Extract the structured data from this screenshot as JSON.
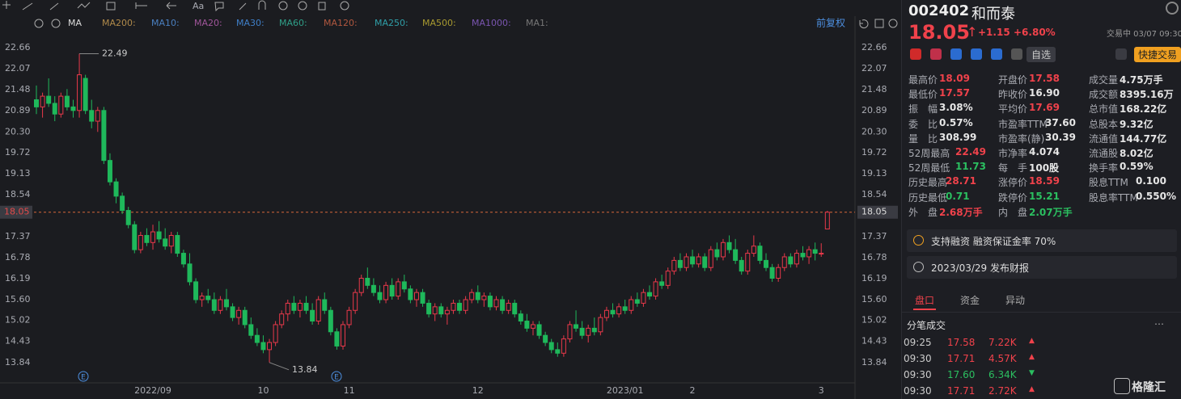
{
  "toolbar": {
    "font_icon": "Aa",
    "ma_label": "MA",
    "adjust": "前复权",
    "ma_items": [
      {
        "name": "MA200:",
        "color": "#b08a4a"
      },
      {
        "name": "MA10:",
        "color": "#4a7fc0"
      },
      {
        "name": "MA20:",
        "color": "#a0559a"
      },
      {
        "name": "MA30:",
        "color": "#3f7fc8"
      },
      {
        "name": "MA60:",
        "color": "#2f9f88"
      },
      {
        "name": "MA120:",
        "color": "#b0573f"
      },
      {
        "name": "MA250:",
        "color": "#2f9fa8"
      },
      {
        "name": "MA500:",
        "color": "#a89a30"
      },
      {
        "name": "MA1000:",
        "color": "#7a55b0"
      },
      {
        "name": "MA1:",
        "color": "#777777"
      }
    ],
    "event_marker": "E"
  },
  "chart_data": {
    "type": "candlestick",
    "up_color": "#e8394a",
    "down_color": "#1fb85b",
    "ylim": [
      13.36,
      23.09
    ],
    "yticks": [
      22.66,
      22.07,
      21.48,
      20.89,
      {
        "value": 20.3,
        "label": "20.30"
      },
      19.72,
      19.13,
      18.54,
      17.37,
      16.78,
      16.19,
      {
        "value": 15.6,
        "label": "15.60"
      },
      15.02,
      14.43,
      13.84
    ],
    "current_price": 18.05,
    "grid": false,
    "annotations": [
      {
        "label": "22.49",
        "value": 22.49
      },
      {
        "label": "13.84",
        "value": 13.84
      }
    ],
    "categories": [
      null,
      null,
      null,
      null,
      null,
      null,
      null,
      null,
      null,
      null,
      null,
      null,
      null,
      null,
      null,
      null,
      null,
      null,
      null,
      "2022/09",
      null,
      null,
      null,
      null,
      null,
      null,
      null,
      null,
      null,
      null,
      null,
      null,
      null,
      null,
      null,
      null,
      null,
      "10",
      null,
      null,
      null,
      null,
      null,
      null,
      null,
      null,
      null,
      null,
      null,
      null,
      null,
      "11",
      null,
      null,
      null,
      null,
      null,
      null,
      null,
      null,
      null,
      null,
      null,
      null,
      null,
      null,
      null,
      null,
      null,
      null,
      null,
      null,
      "12",
      null,
      null,
      null,
      null,
      null,
      null,
      null,
      null,
      null,
      null,
      null,
      null,
      null,
      null,
      null,
      null,
      null,
      null,
      null,
      null,
      null,
      null,
      null,
      "2023/01",
      null,
      null,
      null,
      null,
      null,
      null,
      null,
      null,
      null,
      null,
      "2",
      null,
      null,
      null,
      null,
      null,
      null,
      null,
      null,
      null,
      null,
      null,
      null,
      null,
      null,
      null,
      null,
      null,
      null,
      null,
      null,
      "3",
      null
    ],
    "ohlc": [
      [
        21.2,
        21.6,
        20.8,
        21.0
      ],
      [
        21.0,
        21.4,
        20.7,
        21.3
      ],
      [
        21.3,
        21.8,
        21.0,
        21.1
      ],
      [
        21.1,
        21.3,
        20.6,
        20.8
      ],
      [
        20.8,
        21.4,
        20.7,
        21.3
      ],
      [
        21.3,
        21.5,
        20.9,
        21.0
      ],
      [
        21.0,
        21.2,
        20.7,
        20.9
      ],
      [
        20.9,
        22.49,
        20.7,
        21.9
      ],
      [
        21.8,
        21.9,
        20.8,
        20.9
      ],
      [
        20.9,
        21.2,
        20.4,
        20.6
      ],
      [
        20.6,
        21.0,
        20.3,
        20.9
      ],
      [
        20.9,
        21.0,
        19.4,
        19.5
      ],
      [
        19.5,
        19.7,
        18.8,
        18.9
      ],
      [
        18.9,
        19.0,
        18.3,
        18.5
      ],
      [
        18.5,
        18.6,
        18.0,
        18.1
      ],
      [
        18.1,
        18.2,
        17.6,
        17.7
      ],
      [
        17.7,
        17.8,
        16.9,
        17.0
      ],
      [
        17.0,
        17.5,
        16.9,
        17.4
      ],
      [
        17.4,
        17.6,
        17.1,
        17.2
      ],
      [
        17.2,
        17.7,
        17.0,
        17.5
      ],
      [
        17.5,
        17.8,
        17.2,
        17.3
      ],
      [
        17.3,
        17.6,
        17.0,
        17.1
      ],
      [
        17.1,
        17.5,
        16.9,
        17.4
      ],
      [
        17.4,
        17.5,
        16.8,
        16.9
      ],
      [
        16.9,
        17.0,
        16.5,
        16.6
      ],
      [
        16.6,
        16.9,
        16.0,
        16.1
      ],
      [
        16.1,
        16.2,
        15.5,
        15.6
      ],
      [
        15.6,
        15.8,
        15.4,
        15.7
      ],
      [
        15.7,
        15.9,
        15.5,
        15.6
      ],
      [
        15.6,
        15.8,
        15.2,
        15.3
      ],
      [
        15.3,
        15.7,
        15.2,
        15.6
      ],
      [
        15.6,
        15.9,
        15.3,
        15.4
      ],
      [
        15.4,
        15.5,
        15.0,
        15.1
      ],
      [
        15.1,
        15.4,
        14.9,
        15.3
      ],
      [
        15.3,
        15.4,
        14.8,
        14.9
      ],
      [
        14.9,
        15.1,
        14.5,
        14.6
      ],
      [
        14.6,
        14.8,
        14.3,
        14.4
      ],
      [
        14.4,
        14.6,
        14.1,
        14.2
      ],
      [
        14.2,
        14.5,
        13.84,
        14.4
      ],
      [
        14.4,
        15.0,
        14.3,
        14.9
      ],
      [
        14.9,
        15.3,
        14.8,
        15.2
      ],
      [
        15.2,
        15.6,
        15.0,
        15.5
      ],
      [
        15.5,
        15.7,
        15.2,
        15.3
      ],
      [
        15.3,
        15.6,
        15.1,
        15.5
      ],
      [
        15.5,
        15.7,
        15.2,
        15.3
      ],
      [
        15.3,
        15.5,
        14.9,
        15.0
      ],
      [
        15.0,
        15.7,
        14.9,
        15.6
      ],
      [
        15.6,
        15.8,
        15.2,
        15.3
      ],
      [
        15.3,
        15.4,
        14.6,
        14.7
      ],
      [
        14.7,
        14.8,
        14.2,
        14.3
      ],
      [
        14.3,
        15.0,
        14.2,
        14.9
      ],
      [
        14.9,
        15.4,
        14.8,
        15.3
      ],
      [
        15.3,
        15.9,
        15.2,
        15.8
      ],
      [
        15.8,
        16.3,
        15.7,
        16.2
      ],
      [
        16.2,
        16.5,
        15.9,
        16.0
      ],
      [
        16.0,
        16.2,
        15.7,
        15.8
      ],
      [
        15.8,
        16.0,
        15.5,
        15.6
      ],
      [
        15.6,
        16.1,
        15.5,
        16.0
      ],
      [
        16.0,
        16.2,
        15.6,
        15.7
      ],
      [
        15.7,
        16.2,
        15.6,
        16.1
      ],
      [
        16.1,
        16.3,
        15.8,
        15.9
      ],
      [
        15.9,
        16.0,
        15.5,
        15.6
      ],
      [
        15.6,
        15.9,
        15.4,
        15.8
      ],
      [
        15.8,
        15.9,
        15.4,
        15.5
      ],
      [
        15.5,
        15.6,
        15.1,
        15.2
      ],
      [
        15.2,
        15.5,
        15.0,
        15.4
      ],
      [
        15.4,
        15.5,
        15.1,
        15.2
      ],
      [
        15.2,
        15.4,
        14.9,
        15.3
      ],
      [
        15.3,
        15.6,
        15.2,
        15.5
      ],
      [
        15.5,
        15.6,
        15.2,
        15.3
      ],
      [
        15.3,
        15.7,
        15.2,
        15.6
      ],
      [
        15.6,
        15.9,
        15.5,
        15.8
      ],
      [
        15.8,
        16.0,
        15.5,
        15.6
      ],
      [
        15.6,
        15.8,
        15.4,
        15.7
      ],
      [
        15.7,
        15.8,
        15.3,
        15.4
      ],
      [
        15.4,
        15.7,
        15.3,
        15.6
      ],
      [
        15.6,
        15.7,
        15.2,
        15.3
      ],
      [
        15.3,
        15.6,
        15.2,
        15.5
      ],
      [
        15.5,
        15.6,
        15.1,
        15.2
      ],
      [
        15.2,
        15.3,
        14.9,
        15.0
      ],
      [
        15.0,
        15.2,
        14.7,
        14.8
      ],
      [
        14.8,
        15.0,
        14.6,
        14.9
      ],
      [
        14.9,
        15.0,
        14.5,
        14.6
      ],
      [
        14.6,
        14.7,
        14.3,
        14.4
      ],
      [
        14.4,
        14.5,
        14.1,
        14.2
      ],
      [
        14.2,
        14.4,
        14.0,
        14.1
      ],
      [
        14.1,
        14.6,
        14.0,
        14.5
      ],
      [
        14.5,
        15.0,
        14.4,
        14.9
      ],
      [
        14.9,
        15.3,
        14.7,
        14.8
      ],
      [
        14.8,
        15.0,
        14.5,
        14.6
      ],
      [
        14.6,
        14.9,
        14.4,
        14.8
      ],
      [
        14.8,
        15.1,
        14.6,
        14.7
      ],
      [
        14.7,
        15.2,
        14.6,
        15.1
      ],
      [
        15.1,
        15.4,
        15.0,
        15.3
      ],
      [
        15.3,
        15.5,
        15.1,
        15.2
      ],
      [
        15.2,
        15.5,
        15.1,
        15.4
      ],
      [
        15.4,
        15.6,
        15.2,
        15.3
      ],
      [
        15.3,
        15.7,
        15.2,
        15.6
      ],
      [
        15.6,
        15.8,
        15.4,
        15.5
      ],
      [
        15.5,
        15.9,
        15.4,
        15.8
      ],
      [
        15.8,
        16.0,
        15.6,
        15.7
      ],
      [
        15.7,
        16.2,
        15.6,
        16.1
      ],
      [
        16.1,
        16.3,
        15.9,
        16.0
      ],
      [
        16.0,
        16.5,
        15.9,
        16.4
      ],
      [
        16.4,
        16.8,
        16.3,
        16.7
      ],
      [
        16.7,
        16.9,
        16.4,
        16.5
      ],
      [
        16.5,
        16.9,
        16.4,
        16.8
      ],
      [
        16.8,
        17.0,
        16.5,
        16.6
      ],
      [
        16.6,
        16.9,
        16.5,
        16.8
      ],
      [
        16.8,
        16.9,
        16.4,
        16.5
      ],
      [
        16.5,
        17.1,
        16.4,
        17.0
      ],
      [
        17.0,
        17.2,
        16.7,
        16.8
      ],
      [
        16.8,
        17.3,
        16.7,
        17.2
      ],
      [
        17.2,
        17.4,
        16.9,
        17.0
      ],
      [
        17.0,
        17.3,
        16.6,
        16.7
      ],
      [
        16.7,
        16.8,
        16.3,
        16.4
      ],
      [
        16.4,
        17.0,
        16.3,
        16.9
      ],
      [
        16.9,
        17.4,
        16.8,
        17.1
      ],
      [
        17.1,
        17.2,
        16.6,
        16.7
      ],
      [
        16.7,
        16.9,
        16.4,
        16.5
      ],
      [
        16.5,
        16.6,
        16.1,
        16.2
      ],
      [
        16.2,
        16.6,
        16.1,
        16.5
      ],
      [
        16.5,
        16.9,
        16.4,
        16.8
      ],
      [
        16.8,
        16.9,
        16.5,
        16.6
      ],
      [
        16.6,
        17.0,
        16.5,
        16.9
      ],
      [
        16.9,
        17.1,
        16.7,
        16.8
      ],
      [
        16.8,
        17.1,
        16.6,
        17.0
      ],
      [
        17.0,
        17.2,
        16.7,
        16.9
      ],
      [
        16.9,
        17.18,
        16.8,
        16.9
      ],
      [
        17.58,
        18.09,
        17.57,
        18.05
      ]
    ]
  },
  "quote": {
    "code": "002402",
    "name": "和而泰",
    "price": "18.05",
    "change": "+1.15",
    "pct": "+6.80%",
    "status": "交易中 03/07 09:30",
    "watch": "自选",
    "trade": "快捷交易",
    "columns": [
      [
        {
          "label": "最高价",
          "value": "18.09",
          "color": "#f0424b"
        },
        {
          "label": "最低价",
          "value": "17.57",
          "color": "#f0424b"
        },
        {
          "label": "振　幅",
          "value": "3.08%",
          "color": "#e6e6e6"
        },
        {
          "label": "委　比",
          "value": "0.57%",
          "color": "#e6e6e6"
        },
        {
          "label": "量　比",
          "value": "308.99",
          "color": "#e6e6e6"
        },
        {
          "label": "52周最高",
          "value": "22.49",
          "color": "#f0424b"
        },
        {
          "label": "52周最低",
          "value": "11.73",
          "color": "#2bbf60"
        },
        {
          "label": "历史最高",
          "value": "28.71",
          "color": "#f0424b"
        },
        {
          "label": "历史最低",
          "value": "0.71",
          "color": "#2bbf60"
        },
        {
          "label": "外　盘",
          "value": "2.68万手",
          "color": "#f0424b"
        }
      ],
      [
        {
          "label": "开盘价",
          "value": "17.58",
          "color": "#f0424b"
        },
        {
          "label": "昨收价",
          "value": "16.90",
          "color": "#e6e6e6"
        },
        {
          "label": "平均价",
          "value": "17.69",
          "color": "#f0424b"
        },
        {
          "label": "市盈率TTM",
          "value": "37.60",
          "color": "#e6e6e6"
        },
        {
          "label": "市盈率(静)",
          "value": "30.39",
          "color": "#e6e6e6"
        },
        {
          "label": "市净率",
          "value": "4.074",
          "color": "#e6e6e6"
        },
        {
          "label": "每　手",
          "value": "100股",
          "color": "#e6e6e6"
        },
        {
          "label": "涨停价",
          "value": "18.59",
          "color": "#f0424b"
        },
        {
          "label": "跌停价",
          "value": "15.21",
          "color": "#2bbf60"
        },
        {
          "label": "内　盘",
          "value": "2.07万手",
          "color": "#2bbf60"
        }
      ],
      [
        {
          "label": "成交量",
          "value": "4.75万手",
          "color": "#e6e6e6"
        },
        {
          "label": "成交额",
          "value": "8395.16万",
          "color": "#e6e6e6"
        },
        {
          "label": "总市值",
          "value": "168.22亿",
          "color": "#e6e6e6"
        },
        {
          "label": "总股本",
          "value": "9.32亿",
          "color": "#e6e6e6"
        },
        {
          "label": "流通值",
          "value": "144.77亿",
          "color": "#e6e6e6"
        },
        {
          "label": "流通股",
          "value": "8.02亿",
          "color": "#e6e6e6"
        },
        {
          "label": "换手率",
          "value": "0.59%",
          "color": "#e6e6e6"
        },
        {
          "label": "股息TTM",
          "value": "0.100",
          "color": "#e6e6e6"
        },
        {
          "label": "股息率TTM",
          "value": "0.550%",
          "color": "#e6e6e6"
        }
      ]
    ],
    "notices": [
      "支持融资 融资保证金率 70%",
      "2023/03/29 发布财报"
    ],
    "tabs": [
      "盘口",
      "资金",
      "异动"
    ],
    "ticks_title": "分笔成交",
    "trades": [
      [
        "09:25",
        "17.58",
        "7.22K",
        "#f0424b"
      ],
      [
        "09:30",
        "17.71",
        "4.57K",
        "#f0424b"
      ],
      [
        "09:30",
        "17.60",
        "6.34K",
        "#2bbf60"
      ],
      [
        "09:30",
        "17.71",
        "2.72K",
        "#f0424b"
      ]
    ],
    "brand": "格隆汇"
  }
}
